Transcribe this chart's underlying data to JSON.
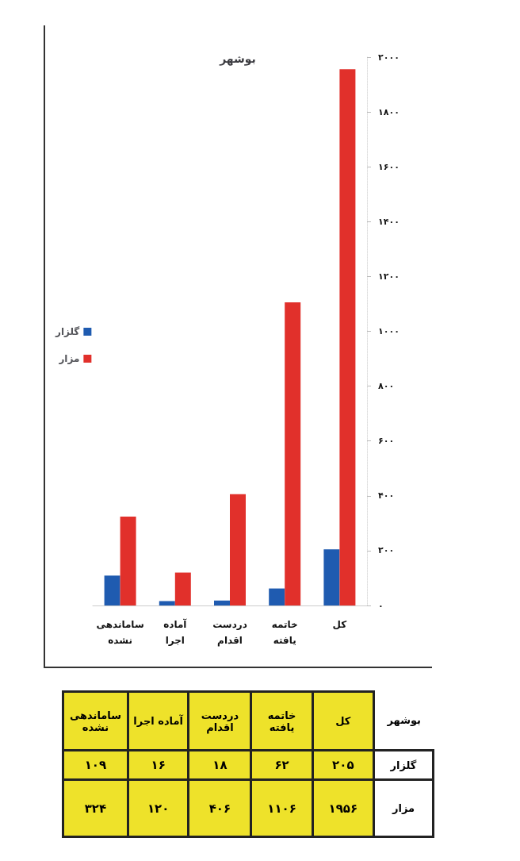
{
  "chart_data": {
    "type": "bar",
    "title": "بوشهر",
    "categories": [
      "ساماندهی نشده",
      "آماده اجرا",
      "دردست اقدام",
      "خاتمه یافته",
      "کل"
    ],
    "series": [
      {
        "name": "گلزار",
        "color": "#1f5bb0",
        "values": [
          109,
          16,
          18,
          62,
          205
        ],
        "value_labels": [
          "۱۰۹",
          "۱۶",
          "۱۸",
          "۶۲",
          "۲۰۵"
        ]
      },
      {
        "name": "مزار",
        "color": "#e1302b",
        "values": [
          324,
          120,
          406,
          1106,
          1956
        ],
        "value_labels": [
          "۳۲۴",
          "۱۲۰",
          "۴۰۶",
          "۱۱۰۶",
          "۱۹۵۶"
        ]
      }
    ],
    "ylim": [
      0,
      2000
    ],
    "yticks": [
      {
        "value": 0,
        "label": "۰"
      },
      {
        "value": 200,
        "label": "۲۰۰"
      },
      {
        "value": 400,
        "label": "۴۰۰"
      },
      {
        "value": 600,
        "label": "۶۰۰"
      },
      {
        "value": 800,
        "label": "۸۰۰"
      },
      {
        "value": 1000,
        "label": "۱۰۰۰"
      },
      {
        "value": 1200,
        "label": "۱۲۰۰"
      },
      {
        "value": 1400,
        "label": "۱۴۰۰"
      },
      {
        "value": 1600,
        "label": "۱۶۰۰"
      },
      {
        "value": 1800,
        "label": "۱۸۰۰"
      },
      {
        "value": 2000,
        "label": "۲۰۰۰"
      }
    ],
    "legend": "left",
    "annotations": [
      "بوشهر"
    ]
  }
}
